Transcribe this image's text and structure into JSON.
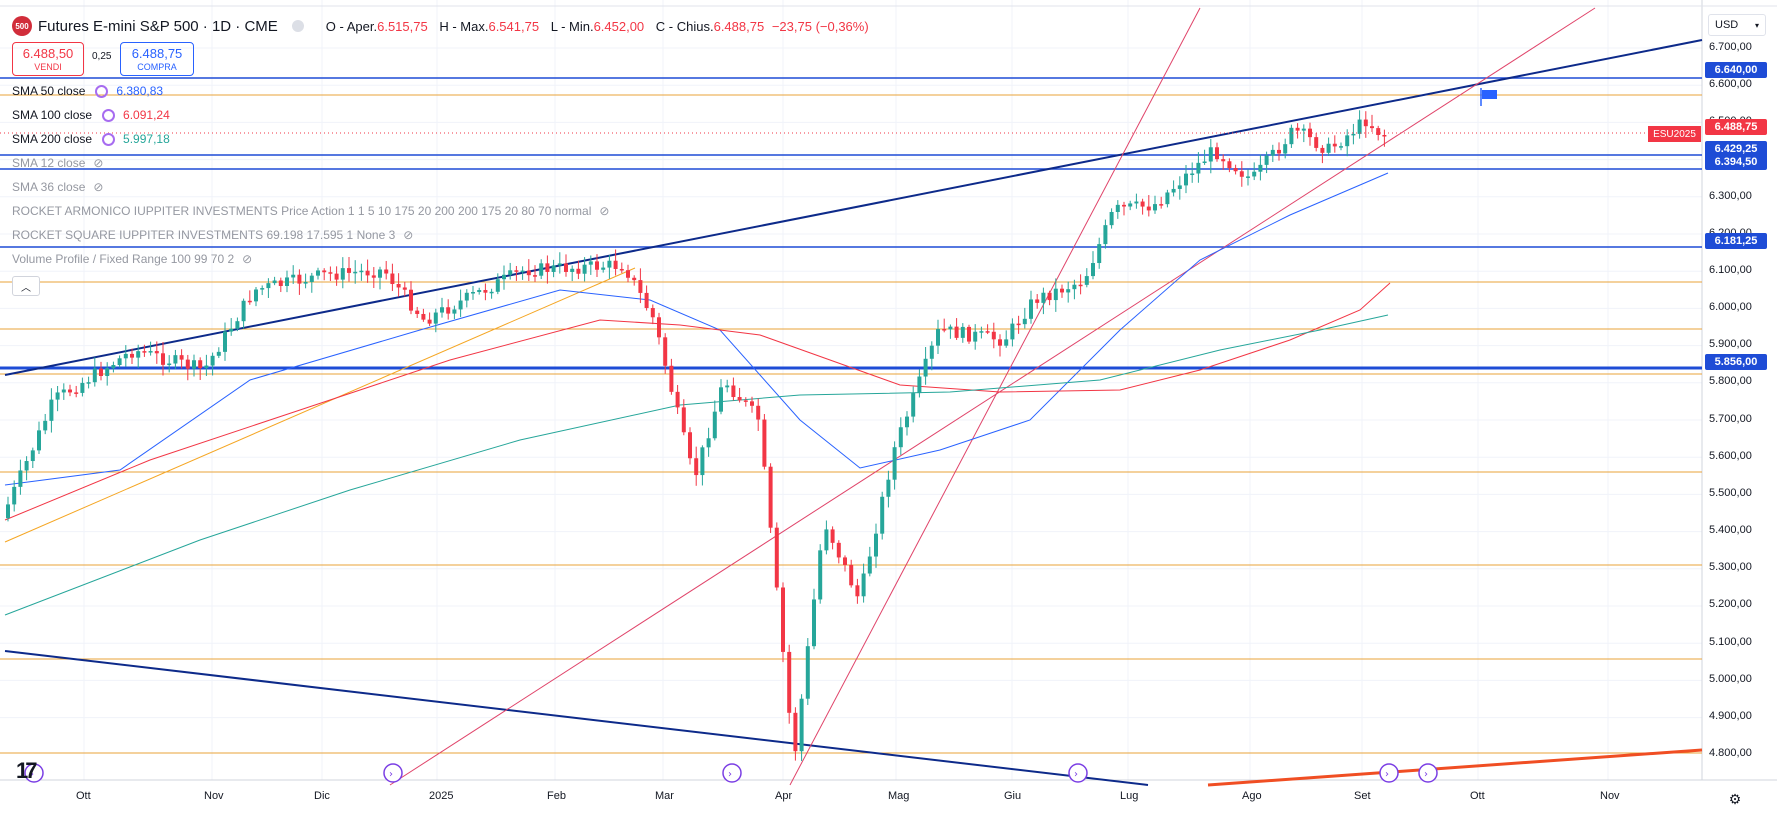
{
  "header": {
    "badge": "500",
    "title": "Futures E-mini S&P 500 · 1D · CME",
    "ohlc": [
      {
        "label": "O - Aper.",
        "value": "6.515,75"
      },
      {
        "label": "H - Max.",
        "value": "6.541,75"
      },
      {
        "label": "L - Min.",
        "value": "6.452,00"
      },
      {
        "label": "C - Chius.",
        "value": "6.488,75"
      }
    ],
    "change": "−23,75 (−0,36%)"
  },
  "trade": {
    "sell_price": "6.488,50",
    "sell_label": "VENDI",
    "spread": "0,25",
    "buy_price": "6.488,75",
    "buy_label": "COMPRA"
  },
  "indicators": [
    {
      "name": "SMA 50 close",
      "value": "6.380,83",
      "color": "#2962ff",
      "visible": true
    },
    {
      "name": "SMA 100 close",
      "value": "6.091,24",
      "color": "#f23645",
      "visible": true
    },
    {
      "name": "SMA 200 close",
      "value": "5.997,18",
      "color": "#26a69a",
      "visible": true
    },
    {
      "name": "SMA 12 close",
      "value": "",
      "visible": false
    },
    {
      "name": "SMA 36 close",
      "value": "",
      "visible": false
    },
    {
      "name": "ROCKET ARMONICO IUPPITER INVESTMENTS Price Action 1 1 5 10 175 20 200 200 175 20 80 70 normal",
      "value": "",
      "visible": false
    },
    {
      "name": "ROCKET SQUARE IUPPITER INVESTMENTS 69.198 17.595 1 None 3",
      "value": "",
      "visible": false
    },
    {
      "name": "Volume Profile / Fixed Range 100 99 70 2",
      "value": "",
      "visible": false
    }
  ],
  "currency": "USD",
  "price_axis": [
    "6.700,00",
    "6.600,00",
    "6.500,00",
    "6.300,00",
    "6.200,00",
    "6.100,00",
    "6.000,00",
    "5.900,00",
    "5.800,00",
    "5.700,00",
    "5.600,00",
    "5.500,00",
    "5.400,00",
    "5.300,00",
    "5.200,00",
    "5.100,00",
    "5.000,00",
    "4.900,00",
    "4.800,00"
  ],
  "price_labels": [
    {
      "value": "6.640,00",
      "style": "blue"
    },
    {
      "value": "6.429,25",
      "style": "blue"
    },
    {
      "value": "6.394,50",
      "style": "blue"
    },
    {
      "value": "6.181,25",
      "style": "blue"
    },
    {
      "value": "5.856,00",
      "style": "blue"
    },
    {
      "value": "6.488,75",
      "style": "red"
    }
  ],
  "contract_tag": "ESU2025",
  "time_axis": [
    "Ott",
    "Nov",
    "Dic",
    "2025",
    "Feb",
    "Mar",
    "Apr",
    "Mag",
    "Giu",
    "Lug",
    "Ago",
    "Set",
    "Ott",
    "Nov"
  ],
  "colors": {
    "up": "#26a69a",
    "down": "#f23645",
    "trend": "#0d2a8a",
    "hline": "#e8a33a",
    "accent": "#2962ff"
  }
}
